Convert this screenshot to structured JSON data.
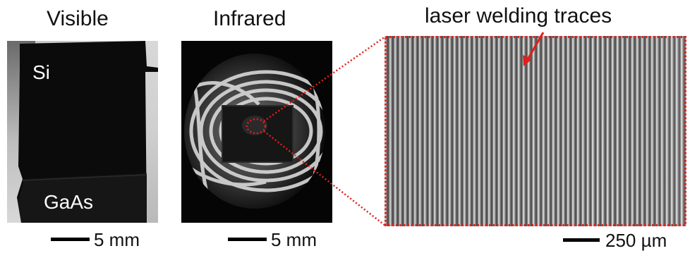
{
  "figure": {
    "panels": [
      {
        "id": "visible",
        "title": "Visible",
        "labels": {
          "top": "Si",
          "bottom": "GaAs"
        },
        "scale_bar": "5 mm"
      },
      {
        "id": "infrared",
        "title": "Infrared",
        "scale_bar": "5 mm"
      },
      {
        "id": "zoom",
        "annotation": "laser welding traces",
        "scale_bar": "250 µm"
      }
    ],
    "colors": {
      "highlight": "#e0201c",
      "scale_bar": "#000000",
      "background": "#ffffff"
    }
  }
}
